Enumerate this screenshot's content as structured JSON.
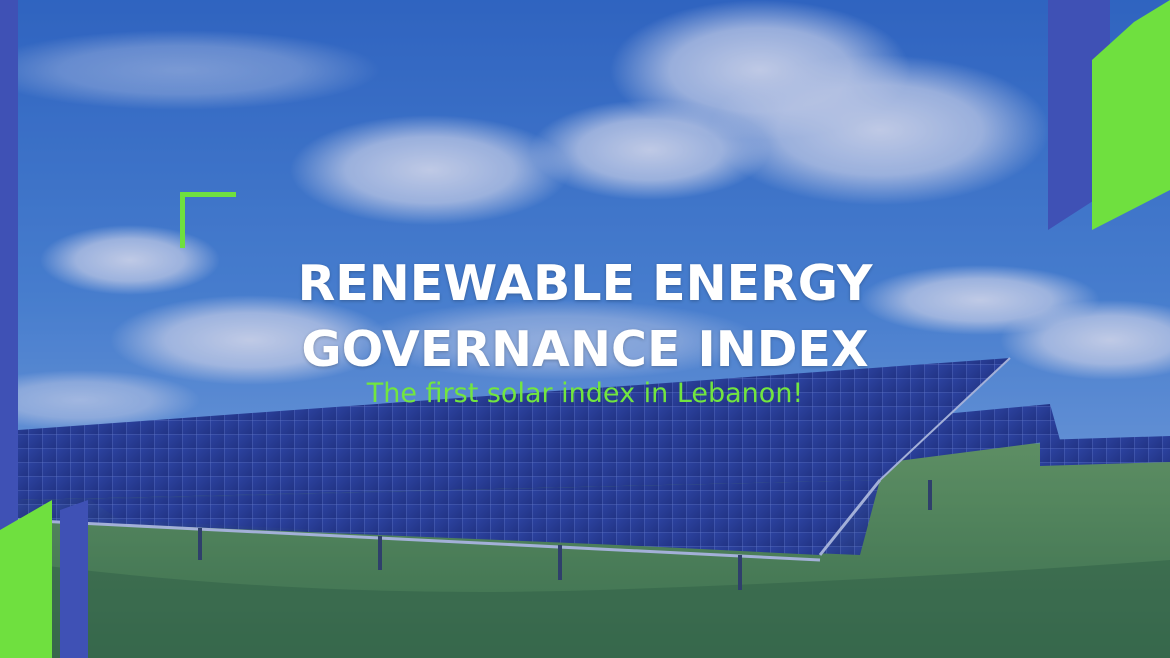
{
  "banner": {
    "title_line1": "RENEWABLE ENERGY",
    "title_line2": "GOVERNANCE INDEX",
    "subtitle": "The first solar index in Lebanon!"
  },
  "colors": {
    "accent_green": "#72e63f",
    "accent_blue": "#3f51b5",
    "overlay_blue": "#344eaa",
    "title_text": "#ffffff"
  },
  "icons": {
    "bracket": "corner-bracket-icon"
  }
}
